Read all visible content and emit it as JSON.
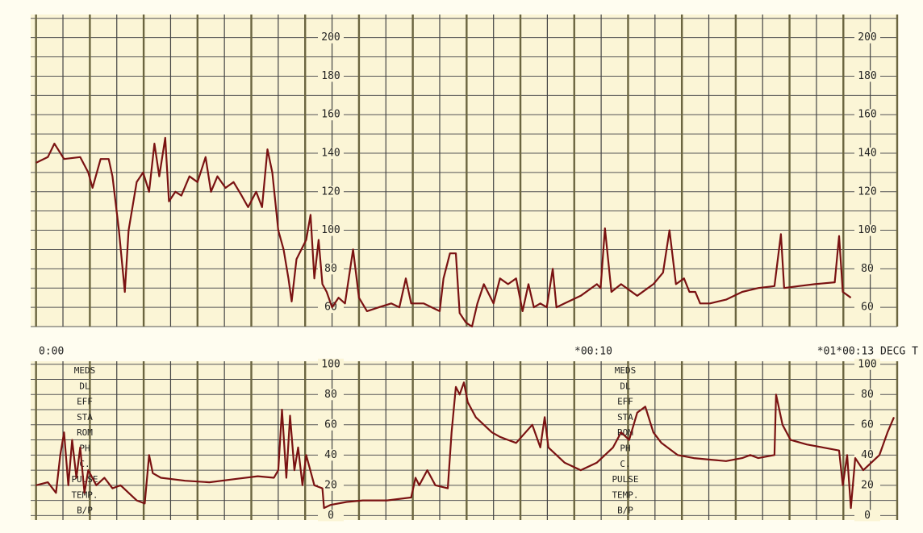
{
  "chart_data": [
    {
      "type": "line",
      "color": "#7a1212",
      "xlim": [
        -0.1,
        16
      ],
      "ylim": [
        50,
        212
      ],
      "yticks": [
        60,
        80,
        100,
        120,
        140,
        160,
        180,
        200
      ],
      "ygrid_minor": [
        50,
        70,
        90,
        110,
        130,
        150,
        170,
        190,
        210
      ],
      "xgrid_major": [
        0,
        1,
        2,
        3,
        4,
        5,
        6,
        7,
        8,
        9,
        10,
        11,
        12,
        13,
        14,
        15,
        16
      ],
      "xgrid_minor": [
        0.5,
        1.5,
        2.5,
        3.5,
        4.5,
        5.5,
        6.5,
        7.5,
        8.5,
        9.5,
        10.5,
        11.5,
        12.5,
        13.5,
        14.5,
        15.5
      ],
      "x": [
        0,
        0.22,
        0.34,
        0.52,
        0.82,
        0.97,
        1.05,
        1.2,
        1.35,
        1.42,
        1.54,
        1.65,
        1.72,
        1.87,
        1.99,
        2.1,
        2.2,
        2.29,
        2.4,
        2.47,
        2.59,
        2.7,
        2.85,
        3.0,
        3.15,
        3.25,
        3.37,
        3.52,
        3.67,
        3.82,
        3.94,
        4.09,
        4.2,
        4.3,
        4.39,
        4.5,
        4.6,
        4.69,
        4.75,
        4.84,
        5.02,
        5.1,
        5.17,
        5.25,
        5.32,
        5.4,
        5.5,
        5.62,
        5.74,
        5.89,
        6.0,
        6.15,
        6.37,
        6.6,
        6.75,
        6.87,
        6.97,
        7.2,
        7.35,
        7.5,
        7.57,
        7.69,
        7.8,
        7.87,
        7.99,
        8.1,
        8.2,
        8.32,
        8.5,
        8.62,
        8.77,
        8.92,
        9.04,
        9.15,
        9.25,
        9.37,
        9.49,
        9.6,
        9.67,
        9.82,
        10.12,
        10.42,
        10.49,
        10.57,
        10.69,
        10.87,
        11.17,
        11.47,
        11.65,
        11.77,
        11.89,
        12.04,
        12.14,
        12.25,
        12.34,
        12.52,
        12.82,
        13.12,
        13.42,
        13.72,
        13.84,
        13.9,
        14.17,
        14.47,
        14.84,
        14.92,
        14.99,
        15.14
      ],
      "values": [
        135,
        138,
        145,
        137,
        138,
        130,
        122,
        137,
        137,
        128,
        100,
        68,
        100,
        125,
        130,
        120,
        145,
        128,
        148,
        115,
        120,
        118,
        128,
        125,
        138,
        120,
        128,
        122,
        125,
        118,
        112,
        120,
        112,
        142,
        130,
        100,
        90,
        75,
        63,
        85,
        95,
        108,
        75,
        95,
        72,
        68,
        60,
        65,
        62,
        90,
        65,
        58,
        60,
        62,
        60,
        75,
        62,
        62,
        60,
        58,
        75,
        88,
        88,
        57,
        52,
        50,
        62,
        72,
        62,
        75,
        72,
        75,
        58,
        72,
        60,
        62,
        60,
        80,
        60,
        62,
        66,
        72,
        70,
        101,
        68,
        72,
        66,
        72,
        78,
        100,
        72,
        75,
        68,
        68,
        62,
        62,
        64,
        68,
        70,
        71,
        98,
        70,
        71,
        72,
        73,
        97,
        68,
        65
      ]
    },
    {
      "type": "line",
      "color": "#7a1212",
      "xlim": [
        -0.1,
        16
      ],
      "ylim": [
        -3,
        102
      ],
      "yticks": [
        0,
        20,
        40,
        60,
        80,
        100
      ],
      "ygrid_minor": [
        10,
        30,
        50,
        70,
        90
      ],
      "xgrid_major": [
        0,
        1,
        2,
        3,
        4,
        5,
        6,
        7,
        8,
        9,
        10,
        11,
        12,
        13,
        14,
        15,
        16
      ],
      "xgrid_minor": [
        0.5,
        1.5,
        2.5,
        3.5,
        4.5,
        5.5,
        6.5,
        7.5,
        8.5,
        9.5,
        10.5,
        11.5,
        12.5,
        13.5,
        14.5,
        15.5
      ],
      "time_labels": [
        "0:00",
        "*00:10",
        "*01*00:13 DECG T"
      ],
      "notes": [
        "MEDS",
        "DL",
        "EFF",
        "STA",
        "ROM",
        "PH",
        "C.",
        "PULSE",
        "TEMP.",
        "B/P"
      ],
      "x": [
        0,
        0.22,
        0.37,
        0.45,
        0.52,
        0.6,
        0.67,
        0.75,
        0.82,
        0.9,
        0.97,
        1.12,
        1.27,
        1.42,
        1.57,
        1.72,
        1.87,
        2.02,
        2.1,
        2.17,
        2.32,
        2.77,
        3.22,
        3.67,
        4.12,
        4.42,
        4.5,
        4.57,
        4.65,
        4.72,
        4.8,
        4.87,
        4.95,
        5.02,
        5.17,
        5.32,
        5.35,
        5.47,
        5.77,
        6.07,
        6.52,
        6.97,
        7.05,
        7.12,
        7.27,
        7.42,
        7.65,
        7.72,
        7.8,
        7.87,
        7.95,
        8.02,
        8.17,
        8.32,
        8.47,
        8.62,
        8.77,
        8.92,
        9.22,
        9.37,
        9.45,
        9.52,
        9.67,
        9.82,
        10.12,
        10.42,
        10.72,
        10.87,
        11.02,
        11.17,
        11.32,
        11.47,
        11.62,
        11.92,
        12.22,
        12.52,
        12.82,
        13.12,
        13.27,
        13.42,
        13.72,
        13.75,
        13.87,
        14.02,
        14.32,
        14.62,
        14.92,
        14.99,
        15.07,
        15.14,
        15.22,
        15.37,
        15.52,
        15.67,
        15.82,
        15.94
      ],
      "values": [
        20,
        22,
        15,
        40,
        55,
        20,
        50,
        25,
        45,
        15,
        30,
        20,
        25,
        18,
        20,
        15,
        10,
        8,
        40,
        28,
        25,
        23,
        22,
        24,
        26,
        25,
        30,
        70,
        25,
        66,
        30,
        45,
        20,
        40,
        20,
        18,
        5,
        7,
        9,
        10,
        10,
        12,
        25,
        20,
        30,
        20,
        18,
        55,
        85,
        80,
        88,
        75,
        65,
        60,
        55,
        52,
        50,
        48,
        60,
        45,
        65,
        45,
        40,
        35,
        30,
        35,
        45,
        55,
        50,
        68,
        72,
        55,
        48,
        40,
        38,
        37,
        36,
        38,
        40,
        38,
        40,
        80,
        60,
        50,
        47,
        45,
        43,
        20,
        40,
        5,
        38,
        30,
        35,
        40,
        55,
        65
      ]
    }
  ]
}
